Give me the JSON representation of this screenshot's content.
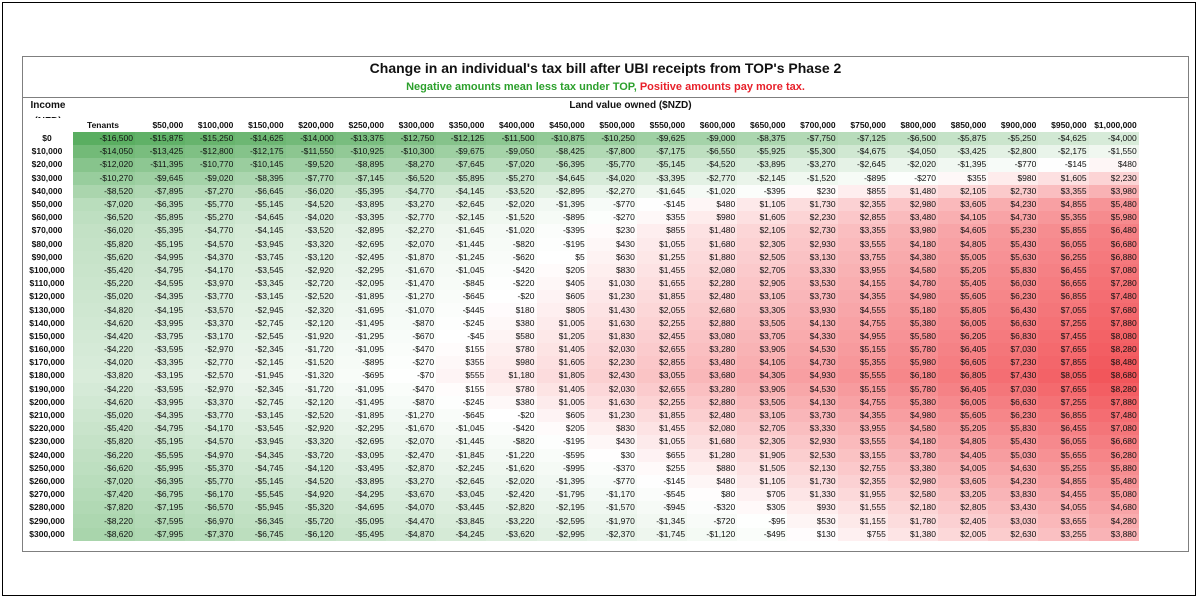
{
  "chart_data": {
    "type": "table",
    "title": "Change in an individual's tax bill after UBI receipts from TOP's Phase 2",
    "subtitle_negative": "Negative amounts mean less tax under TOP,",
    "subtitle_positive": "Positive amounts pay more tax.",
    "row_header_lines": [
      "Income",
      "(NZD)"
    ],
    "column_group_label": "Land value owned ($NZD)",
    "columns": [
      "Tenants",
      "$50,000",
      "$100,000",
      "$150,000",
      "$200,000",
      "$250,000",
      "$300,000",
      "$350,000",
      "$400,000",
      "$450,000",
      "$500,000",
      "$550,000",
      "$600,000",
      "$650,000",
      "$700,000",
      "$750,000",
      "$800,000",
      "$850,000",
      "$900,000",
      "$950,000",
      "$1,000,000"
    ],
    "rows": [
      {
        "income": "$0",
        "values": [
          "-$16,500",
          "-$15,875",
          "-$15,250",
          "-$14,625",
          "-$14,000",
          "-$13,375",
          "-$12,750",
          "-$12,125",
          "-$11,500",
          "-$10,875",
          "-$10,250",
          "-$9,625",
          "-$9,000",
          "-$8,375",
          "-$7,750",
          "-$7,125",
          "-$6,500",
          "-$5,875",
          "-$5,250",
          "-$4,625",
          "-$4,000"
        ]
      },
      {
        "income": "$10,000",
        "values": [
          "-$14,050",
          "-$13,425",
          "-$12,800",
          "-$12,175",
          "-$11,550",
          "-$10,925",
          "-$10,300",
          "-$9,675",
          "-$9,050",
          "-$8,425",
          "-$7,800",
          "-$7,175",
          "-$6,550",
          "-$5,925",
          "-$5,300",
          "-$4,675",
          "-$4,050",
          "-$3,425",
          "-$2,800",
          "-$2,175",
          "-$1,550"
        ]
      },
      {
        "income": "$20,000",
        "values": [
          "-$12,020",
          "-$11,395",
          "-$10,770",
          "-$10,145",
          "-$9,520",
          "-$8,895",
          "-$8,270",
          "-$7,645",
          "-$7,020",
          "-$6,395",
          "-$5,770",
          "-$5,145",
          "-$4,520",
          "-$3,895",
          "-$3,270",
          "-$2,645",
          "-$2,020",
          "-$1,395",
          "-$770",
          "-$145",
          "$480"
        ]
      },
      {
        "income": "$30,000",
        "values": [
          "-$10,270",
          "-$9,645",
          "-$9,020",
          "-$8,395",
          "-$7,770",
          "-$7,145",
          "-$6,520",
          "-$5,895",
          "-$5,270",
          "-$4,645",
          "-$4,020",
          "-$3,395",
          "-$2,770",
          "-$2,145",
          "-$1,520",
          "-$895",
          "-$270",
          "$355",
          "$980",
          "$1,605",
          "$2,230"
        ]
      },
      {
        "income": "$40,000",
        "values": [
          "-$8,520",
          "-$7,895",
          "-$7,270",
          "-$6,645",
          "-$6,020",
          "-$5,395",
          "-$4,770",
          "-$4,145",
          "-$3,520",
          "-$2,895",
          "-$2,270",
          "-$1,645",
          "-$1,020",
          "-$395",
          "$230",
          "$855",
          "$1,480",
          "$2,105",
          "$2,730",
          "$3,355",
          "$3,980"
        ]
      },
      {
        "income": "$50,000",
        "values": [
          "-$7,020",
          "-$6,395",
          "-$5,770",
          "-$5,145",
          "-$4,520",
          "-$3,895",
          "-$3,270",
          "-$2,645",
          "-$2,020",
          "-$1,395",
          "-$770",
          "-$145",
          "$480",
          "$1,105",
          "$1,730",
          "$2,355",
          "$2,980",
          "$3,605",
          "$4,230",
          "$4,855",
          "$5,480"
        ]
      },
      {
        "income": "$60,000",
        "values": [
          "-$6,520",
          "-$5,895",
          "-$5,270",
          "-$4,645",
          "-$4,020",
          "-$3,395",
          "-$2,770",
          "-$2,145",
          "-$1,520",
          "-$895",
          "-$270",
          "$355",
          "$980",
          "$1,605",
          "$2,230",
          "$2,855",
          "$3,480",
          "$4,105",
          "$4,730",
          "$5,355",
          "$5,980"
        ]
      },
      {
        "income": "$70,000",
        "values": [
          "-$6,020",
          "-$5,395",
          "-$4,770",
          "-$4,145",
          "-$3,520",
          "-$2,895",
          "-$2,270",
          "-$1,645",
          "-$1,020",
          "-$395",
          "$230",
          "$855",
          "$1,480",
          "$2,105",
          "$2,730",
          "$3,355",
          "$3,980",
          "$4,605",
          "$5,230",
          "$5,855",
          "$6,480"
        ]
      },
      {
        "income": "$80,000",
        "values": [
          "-$5,820",
          "-$5,195",
          "-$4,570",
          "-$3,945",
          "-$3,320",
          "-$2,695",
          "-$2,070",
          "-$1,445",
          "-$820",
          "-$195",
          "$430",
          "$1,055",
          "$1,680",
          "$2,305",
          "$2,930",
          "$3,555",
          "$4,180",
          "$4,805",
          "$5,430",
          "$6,055",
          "$6,680"
        ]
      },
      {
        "income": "$90,000",
        "values": [
          "-$5,620",
          "-$4,995",
          "-$4,370",
          "-$3,745",
          "-$3,120",
          "-$2,495",
          "-$1,870",
          "-$1,245",
          "-$620",
          "$5",
          "$630",
          "$1,255",
          "$1,880",
          "$2,505",
          "$3,130",
          "$3,755",
          "$4,380",
          "$5,005",
          "$5,630",
          "$6,255",
          "$6,880"
        ]
      },
      {
        "income": "$100,000",
        "values": [
          "-$5,420",
          "-$4,795",
          "-$4,170",
          "-$3,545",
          "-$2,920",
          "-$2,295",
          "-$1,670",
          "-$1,045",
          "-$420",
          "$205",
          "$830",
          "$1,455",
          "$2,080",
          "$2,705",
          "$3,330",
          "$3,955",
          "$4,580",
          "$5,205",
          "$5,830",
          "$6,455",
          "$7,080"
        ]
      },
      {
        "income": "$110,000",
        "values": [
          "-$5,220",
          "-$4,595",
          "-$3,970",
          "-$3,345",
          "-$2,720",
          "-$2,095",
          "-$1,470",
          "-$845",
          "-$220",
          "$405",
          "$1,030",
          "$1,655",
          "$2,280",
          "$2,905",
          "$3,530",
          "$4,155",
          "$4,780",
          "$5,405",
          "$6,030",
          "$6,655",
          "$7,280"
        ]
      },
      {
        "income": "$120,000",
        "values": [
          "-$5,020",
          "-$4,395",
          "-$3,770",
          "-$3,145",
          "-$2,520",
          "-$1,895",
          "-$1,270",
          "-$645",
          "-$20",
          "$605",
          "$1,230",
          "$1,855",
          "$2,480",
          "$3,105",
          "$3,730",
          "$4,355",
          "$4,980",
          "$5,605",
          "$6,230",
          "$6,855",
          "$7,480"
        ]
      },
      {
        "income": "$130,000",
        "values": [
          "-$4,820",
          "-$4,195",
          "-$3,570",
          "-$2,945",
          "-$2,320",
          "-$1,695",
          "-$1,070",
          "-$445",
          "$180",
          "$805",
          "$1,430",
          "$2,055",
          "$2,680",
          "$3,305",
          "$3,930",
          "$4,555",
          "$5,180",
          "$5,805",
          "$6,430",
          "$7,055",
          "$7,680"
        ]
      },
      {
        "income": "$140,000",
        "values": [
          "-$4,620",
          "-$3,995",
          "-$3,370",
          "-$2,745",
          "-$2,120",
          "-$1,495",
          "-$870",
          "-$245",
          "$380",
          "$1,005",
          "$1,630",
          "$2,255",
          "$2,880",
          "$3,505",
          "$4,130",
          "$4,755",
          "$5,380",
          "$6,005",
          "$6,630",
          "$7,255",
          "$7,880"
        ]
      },
      {
        "income": "$150,000",
        "values": [
          "-$4,420",
          "-$3,795",
          "-$3,170",
          "-$2,545",
          "-$1,920",
          "-$1,295",
          "-$670",
          "-$45",
          "$580",
          "$1,205",
          "$1,830",
          "$2,455",
          "$3,080",
          "$3,705",
          "$4,330",
          "$4,955",
          "$5,580",
          "$6,205",
          "$6,830",
          "$7,455",
          "$8,080"
        ]
      },
      {
        "income": "$160,000",
        "values": [
          "-$4,220",
          "-$3,595",
          "-$2,970",
          "-$2,345",
          "-$1,720",
          "-$1,095",
          "-$470",
          "$155",
          "$780",
          "$1,405",
          "$2,030",
          "$2,655",
          "$3,280",
          "$3,905",
          "$4,530",
          "$5,155",
          "$5,780",
          "$6,405",
          "$7,030",
          "$7,655",
          "$8,280"
        ]
      },
      {
        "income": "$170,000",
        "values": [
          "-$4,020",
          "-$3,395",
          "-$2,770",
          "-$2,145",
          "-$1,520",
          "-$895",
          "-$270",
          "$355",
          "$980",
          "$1,605",
          "$2,230",
          "$2,855",
          "$3,480",
          "$4,105",
          "$4,730",
          "$5,355",
          "$5,980",
          "$6,605",
          "$7,230",
          "$7,855",
          "$8,480"
        ]
      },
      {
        "income": "$180,000",
        "values": [
          "-$3,820",
          "-$3,195",
          "-$2,570",
          "-$1,945",
          "-$1,320",
          "-$695",
          "-$70",
          "$555",
          "$1,180",
          "$1,805",
          "$2,430",
          "$3,055",
          "$3,680",
          "$4,305",
          "$4,930",
          "$5,555",
          "$6,180",
          "$6,805",
          "$7,430",
          "$8,055",
          "$8,680"
        ]
      },
      {
        "income": "$190,000",
        "values": [
          "-$4,220",
          "-$3,595",
          "-$2,970",
          "-$2,345",
          "-$1,720",
          "-$1,095",
          "-$470",
          "$155",
          "$780",
          "$1,405",
          "$2,030",
          "$2,655",
          "$3,280",
          "$3,905",
          "$4,530",
          "$5,155",
          "$5,780",
          "$6,405",
          "$7,030",
          "$7,655",
          "$8,280"
        ]
      },
      {
        "income": "$200,000",
        "values": [
          "-$4,620",
          "-$3,995",
          "-$3,370",
          "-$2,745",
          "-$2,120",
          "-$1,495",
          "-$870",
          "-$245",
          "$380",
          "$1,005",
          "$1,630",
          "$2,255",
          "$2,880",
          "$3,505",
          "$4,130",
          "$4,755",
          "$5,380",
          "$6,005",
          "$6,630",
          "$7,255",
          "$7,880"
        ]
      },
      {
        "income": "$210,000",
        "values": [
          "-$5,020",
          "-$4,395",
          "-$3,770",
          "-$3,145",
          "-$2,520",
          "-$1,895",
          "-$1,270",
          "-$645",
          "-$20",
          "$605",
          "$1,230",
          "$1,855",
          "$2,480",
          "$3,105",
          "$3,730",
          "$4,355",
          "$4,980",
          "$5,605",
          "$6,230",
          "$6,855",
          "$7,480"
        ]
      },
      {
        "income": "$220,000",
        "values": [
          "-$5,420",
          "-$4,795",
          "-$4,170",
          "-$3,545",
          "-$2,920",
          "-$2,295",
          "-$1,670",
          "-$1,045",
          "-$420",
          "$205",
          "$830",
          "$1,455",
          "$2,080",
          "$2,705",
          "$3,330",
          "$3,955",
          "$4,580",
          "$5,205",
          "$5,830",
          "$6,455",
          "$7,080"
        ]
      },
      {
        "income": "$230,000",
        "values": [
          "-$5,820",
          "-$5,195",
          "-$4,570",
          "-$3,945",
          "-$3,320",
          "-$2,695",
          "-$2,070",
          "-$1,445",
          "-$820",
          "-$195",
          "$430",
          "$1,055",
          "$1,680",
          "$2,305",
          "$2,930",
          "$3,555",
          "$4,180",
          "$4,805",
          "$5,430",
          "$6,055",
          "$6,680"
        ]
      },
      {
        "income": "$240,000",
        "values": [
          "-$6,220",
          "-$5,595",
          "-$4,970",
          "-$4,345",
          "-$3,720",
          "-$3,095",
          "-$2,470",
          "-$1,845",
          "-$1,220",
          "-$595",
          "$30",
          "$655",
          "$1,280",
          "$1,905",
          "$2,530",
          "$3,155",
          "$3,780",
          "$4,405",
          "$5,030",
          "$5,655",
          "$6,280"
        ]
      },
      {
        "income": "$250,000",
        "values": [
          "-$6,620",
          "-$5,995",
          "-$5,370",
          "-$4,745",
          "-$4,120",
          "-$3,495",
          "-$2,870",
          "-$2,245",
          "-$1,620",
          "-$995",
          "-$370",
          "$255",
          "$880",
          "$1,505",
          "$2,130",
          "$2,755",
          "$3,380",
          "$4,005",
          "$4,630",
          "$5,255",
          "$5,880"
        ]
      },
      {
        "income": "$260,000",
        "values": [
          "-$7,020",
          "-$6,395",
          "-$5,770",
          "-$5,145",
          "-$4,520",
          "-$3,895",
          "-$3,270",
          "-$2,645",
          "-$2,020",
          "-$1,395",
          "-$770",
          "-$145",
          "$480",
          "$1,105",
          "$1,730",
          "$2,355",
          "$2,980",
          "$3,605",
          "$4,230",
          "$4,855",
          "$5,480"
        ]
      },
      {
        "income": "$270,000",
        "values": [
          "-$7,420",
          "-$6,795",
          "-$6,170",
          "-$5,545",
          "-$4,920",
          "-$4,295",
          "-$3,670",
          "-$3,045",
          "-$2,420",
          "-$1,795",
          "-$1,170",
          "-$545",
          "$80",
          "$705",
          "$1,330",
          "$1,955",
          "$2,580",
          "$3,205",
          "$3,830",
          "$4,455",
          "$5,080"
        ]
      },
      {
        "income": "$280,000",
        "values": [
          "-$7,820",
          "-$7,195",
          "-$6,570",
          "-$5,945",
          "-$5,320",
          "-$4,695",
          "-$4,070",
          "-$3,445",
          "-$2,820",
          "-$2,195",
          "-$1,570",
          "-$945",
          "-$320",
          "$305",
          "$930",
          "$1,555",
          "$2,180",
          "$2,805",
          "$3,430",
          "$4,055",
          "$4,680"
        ]
      },
      {
        "income": "$290,000",
        "values": [
          "-$8,220",
          "-$7,595",
          "-$6,970",
          "-$6,345",
          "-$5,720",
          "-$5,095",
          "-$4,470",
          "-$3,845",
          "-$3,220",
          "-$2,595",
          "-$1,970",
          "-$1,345",
          "-$720",
          "-$95",
          "$530",
          "$1,155",
          "$1,780",
          "$2,405",
          "$3,030",
          "$3,655",
          "$4,280"
        ]
      },
      {
        "income": "$300,000",
        "values": [
          "-$8,620",
          "-$7,995",
          "-$7,370",
          "-$6,745",
          "-$6,120",
          "-$5,495",
          "-$4,870",
          "-$4,245",
          "-$3,620",
          "-$2,995",
          "-$2,370",
          "-$1,745",
          "-$1,120",
          "-$495",
          "$130",
          "$755",
          "$1,380",
          "$2,005",
          "$2,630",
          "$3,255",
          "$3,880"
        ]
      }
    ],
    "color_scale": {
      "negative_max": "#5aae61",
      "neutral": "#ffffff",
      "positive_max": "#f2565b"
    }
  }
}
